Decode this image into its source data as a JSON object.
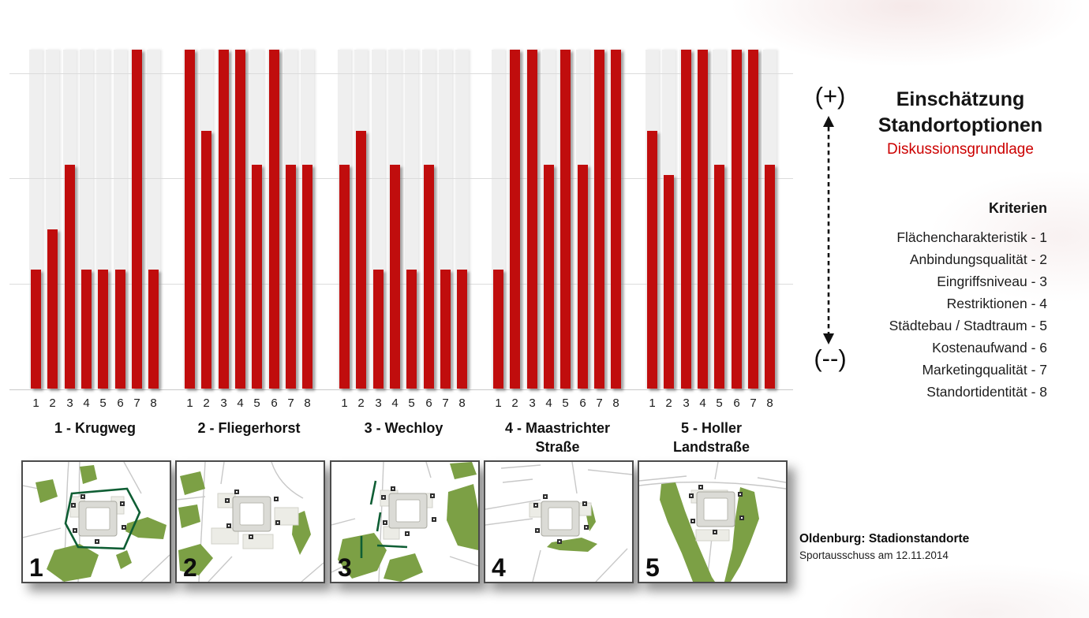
{
  "slide": {
    "scale_plus": "(+)",
    "scale_minus": "(--)",
    "title_line1": "Einschätzung",
    "title_line2": "Standortoptionen",
    "subtitle": "Diskussionsgrundlage",
    "criteria_heading": "Kriterien",
    "criteria": [
      "Flächencharakteristik - 1",
      "Anbindungsqualität - 2",
      "Eingriffsniveau - 3",
      "Restriktionen - 4",
      "Städtebau / Stadtraum - 5",
      "Kostenaufwand - 6",
      "Marketingqualität - 7",
      "Standortidentität - 8"
    ],
    "footer_title": "Oldenburg: Stadionstandorte",
    "footer_subtitle": "Sportausschuss am 12.11.2014"
  },
  "chart_data": {
    "type": "bar",
    "title": "Einschätzung Standortoptionen",
    "subtitle": "Diskussionsgrundlage",
    "scale": {
      "top": "(+)",
      "bottom": "(--)"
    },
    "categories": [
      "1",
      "2",
      "3",
      "4",
      "5",
      "6",
      "7",
      "8"
    ],
    "series": [
      {
        "name": "1 - Krugweg",
        "label_lines": [
          "1 - Krugweg"
        ],
        "values": [
          0.35,
          0.47,
          0.66,
          0.35,
          0.35,
          0.35,
          1.0,
          0.35
        ]
      },
      {
        "name": "2 - Fliegerhorst",
        "label_lines": [
          "2 - Fliegerhorst"
        ],
        "values": [
          1.0,
          0.76,
          1.0,
          1.0,
          0.66,
          1.0,
          0.66,
          0.66
        ]
      },
      {
        "name": "3 - Wechloy",
        "label_lines": [
          "3 - Wechloy"
        ],
        "values": [
          0.66,
          0.76,
          0.35,
          0.66,
          0.35,
          0.66,
          0.35,
          0.35
        ]
      },
      {
        "name": "4 - Maastrichter Straße",
        "label_lines": [
          "4 - Maastrichter",
          "Straße"
        ],
        "values": [
          0.35,
          1.0,
          1.0,
          0.66,
          1.0,
          0.66,
          1.0,
          1.0
        ]
      },
      {
        "name": "5 - Holler Landstraße",
        "label_lines": [
          "5 - Holler",
          "Landstraße"
        ],
        "values": [
          0.76,
          0.63,
          1.0,
          1.0,
          0.66,
          1.0,
          1.0,
          0.66
        ]
      }
    ],
    "ylim": [
      0,
      1
    ],
    "gridlines": [
      0.31,
      0.62,
      0.93
    ],
    "grid": true,
    "legend_position": "right",
    "bar_color": "#c00d0d",
    "track_color": "#efefef"
  },
  "maps": [
    {
      "number": "1"
    },
    {
      "number": "2"
    },
    {
      "number": "3"
    },
    {
      "number": "4"
    },
    {
      "number": "5"
    }
  ],
  "colors": {
    "bar_red": "#c00d0d",
    "bar_track": "#efefef",
    "accent_red": "#cc0000",
    "map_green": "#7ca045",
    "map_dark_green": "#0f5e34"
  }
}
